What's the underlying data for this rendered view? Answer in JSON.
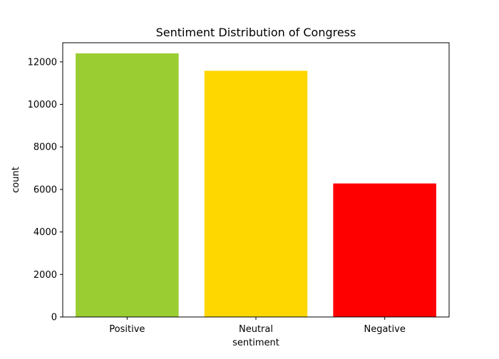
{
  "chart_data": {
    "type": "bar",
    "title": "Sentiment Distribution of Congress",
    "xlabel": "sentiment",
    "ylabel": "count",
    "categories": [
      "Positive",
      "Neutral",
      "Negative"
    ],
    "values": [
      12400,
      11580,
      6280
    ],
    "colors": [
      "#9acd32",
      "#ffd700",
      "#ff0000"
    ],
    "ylim": [
      0,
      12900
    ],
    "yticks": [
      0,
      2000,
      4000,
      6000,
      8000,
      10000,
      12000
    ],
    "grid": false,
    "legend": "none"
  }
}
